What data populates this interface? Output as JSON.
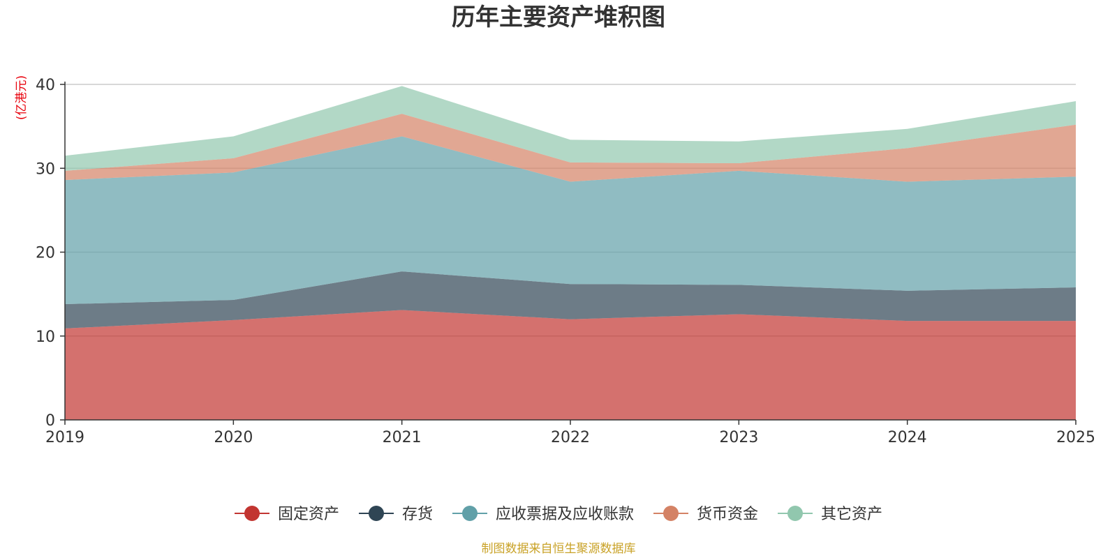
{
  "chart_data": {
    "type": "area",
    "stacked": true,
    "title": "历年主要资产堆积图",
    "unit_label": "(亿港元)",
    "x": [
      "2019",
      "2020",
      "2021",
      "2022",
      "2023",
      "2024",
      "2025"
    ],
    "ylim": [
      0,
      40
    ],
    "yticks": [
      "0",
      "10",
      "20",
      "30",
      "40"
    ],
    "grid": true,
    "legend_position": "bottom",
    "series": [
      {
        "name": "固定资产",
        "color": "#c23531",
        "values": [
          10.9,
          11.9,
          13.1,
          12.0,
          12.6,
          11.8,
          11.8
        ]
      },
      {
        "name": "存货",
        "color": "#2f4554",
        "values": [
          2.9,
          2.4,
          4.6,
          4.2,
          3.5,
          3.6,
          4.0
        ]
      },
      {
        "name": "应收票据及应收账款",
        "color": "#61a0a8",
        "values": [
          14.8,
          15.2,
          16.1,
          12.2,
          13.6,
          13.0,
          13.2
        ]
      },
      {
        "name": "货币资金",
        "color": "#d48265",
        "values": [
          1.1,
          1.7,
          2.7,
          2.3,
          0.9,
          4.0,
          6.2
        ]
      },
      {
        "name": "其它资产",
        "color": "#91c7ae",
        "values": [
          1.8,
          2.6,
          3.3,
          2.7,
          2.6,
          2.3,
          2.8
        ]
      }
    ]
  },
  "source_note": "制图数据来自恒生聚源数据库",
  "colors": {
    "unit_label": "#e8000b",
    "source_note": "#c9a227",
    "axis": "#333333",
    "grid": "#cccccc"
  }
}
